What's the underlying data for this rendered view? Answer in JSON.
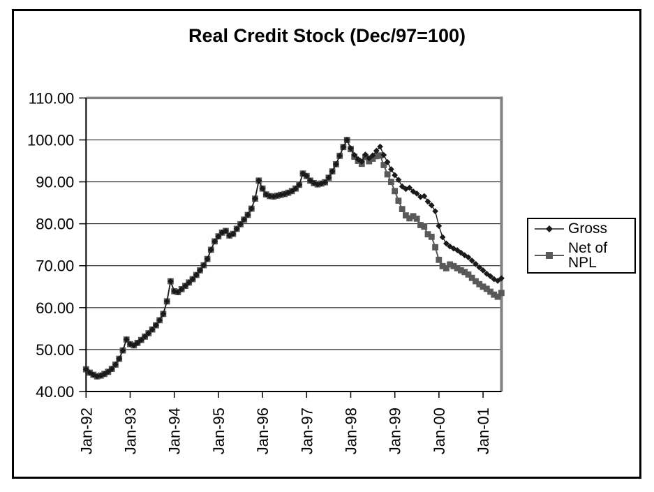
{
  "window": {
    "background": "#ffffff",
    "border_color": "#000000"
  },
  "title": "Real Credit Stock (Dec/97=100)",
  "legend": {
    "position": "right",
    "items": [
      {
        "label": "Gross",
        "color": "#1a1a1a",
        "marker": "diamond"
      },
      {
        "label": "Net of NPL",
        "color": "#595959",
        "marker": "square"
      }
    ]
  },
  "chart_data": {
    "type": "line",
    "title": "Real Credit Stock (Dec/97=100)",
    "frequency": "monthly",
    "x_start": "Jan-92",
    "x_end": "Jun-01",
    "x_tick_labels": [
      "Jan-92",
      "Jan-93",
      "Jan-94",
      "Jan-95",
      "Jan-96",
      "Jan-97",
      "Jan-98",
      "Jan-99",
      "Jan-00",
      "Jan-01"
    ],
    "y_ticks": [
      40,
      50,
      60,
      70,
      80,
      90,
      100,
      110
    ],
    "ylim": [
      40,
      110
    ],
    "y_tick_format": "0.00",
    "grid": "horizontal",
    "gridline_color": "#000000",
    "plot_border_color": "#808080",
    "legend_position": "right",
    "series": [
      {
        "name": "Gross",
        "marker": "diamond",
        "color": "#1a1a1a",
        "values": [
          45.3,
          44.5,
          44.0,
          43.6,
          43.8,
          44.2,
          44.7,
          45.4,
          46.4,
          47.8,
          49.8,
          52.4,
          51.3,
          51.0,
          51.6,
          52.3,
          53.1,
          53.9,
          54.8,
          55.8,
          57.0,
          58.5,
          61.5,
          66.3,
          63.9,
          63.7,
          64.4,
          65.2,
          66.0,
          66.8,
          67.8,
          68.9,
          70.1,
          71.6,
          73.8,
          75.8,
          77.0,
          77.9,
          78.3,
          77.2,
          77.6,
          78.8,
          79.9,
          81.0,
          82.1,
          83.6,
          86.0,
          90.3,
          88.4,
          87.0,
          86.6,
          86.5,
          86.7,
          86.9,
          87.1,
          87.4,
          87.8,
          88.4,
          89.3,
          92.0,
          91.4,
          90.3,
          89.7,
          89.4,
          89.6,
          89.9,
          91.0,
          92.5,
          94.2,
          96.2,
          98.3,
          100.0,
          98.0,
          96.4,
          95.4,
          94.8,
          96.5,
          95.6,
          96.3,
          97.4,
          98.4,
          96.4,
          94.7,
          93.0,
          91.6,
          90.5,
          88.9,
          88.3,
          88.6,
          87.7,
          87.2,
          86.4,
          86.6,
          85.3,
          84.4,
          83.0,
          79.5,
          76.8,
          75.3,
          74.6,
          74.1,
          73.7,
          73.1,
          72.5,
          72.0,
          71.2,
          70.4,
          69.6,
          68.9,
          68.1,
          67.5,
          66.8,
          66.4,
          67.0
        ]
      },
      {
        "name": "Net of NPL",
        "marker": "square",
        "color": "#595959",
        "values": [
          45.3,
          44.5,
          44.0,
          43.6,
          43.8,
          44.2,
          44.7,
          45.4,
          46.4,
          47.8,
          49.8,
          52.4,
          51.3,
          51.0,
          51.6,
          52.3,
          53.1,
          53.9,
          54.8,
          55.8,
          57.0,
          58.5,
          61.5,
          66.3,
          63.9,
          63.7,
          64.4,
          65.2,
          66.0,
          66.8,
          67.8,
          68.9,
          70.1,
          71.6,
          73.8,
          75.8,
          77.0,
          77.9,
          78.3,
          77.2,
          77.6,
          78.8,
          79.9,
          81.0,
          82.1,
          83.6,
          86.0,
          90.3,
          88.4,
          87.0,
          86.6,
          86.5,
          86.7,
          86.9,
          87.1,
          87.4,
          87.8,
          88.4,
          89.3,
          92.0,
          91.4,
          90.3,
          89.7,
          89.4,
          89.6,
          89.9,
          91.0,
          92.5,
          94.2,
          96.2,
          98.3,
          100.0,
          97.8,
          96.0,
          95.0,
          94.3,
          95.9,
          94.9,
          95.5,
          96.1,
          96.3,
          94.0,
          91.8,
          90.0,
          87.8,
          85.5,
          83.5,
          82.0,
          81.3,
          81.8,
          81.2,
          79.7,
          79.3,
          77.5,
          76.9,
          74.4,
          71.4,
          69.9,
          69.4,
          70.3,
          69.9,
          69.4,
          68.9,
          68.5,
          67.9,
          67.1,
          66.3,
          65.6,
          65.0,
          64.5,
          63.8,
          63.1,
          62.6,
          63.5
        ]
      }
    ]
  }
}
